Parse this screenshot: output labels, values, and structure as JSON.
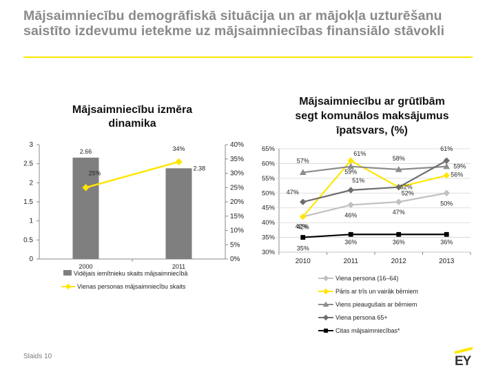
{
  "slide_title": {
    "line1": "Mājsaimniecību demogrāfiskā situācija un ar mājokļa uzturēšanu",
    "line2": "saistīto izdevumu ietekme uz mājsaimniecības finansiālo stāvokli"
  },
  "footer": {
    "slide_label": "Slaids 10",
    "logo": "EY"
  },
  "colors": {
    "accent": "#ffe600",
    "bar": "#7f7f7f",
    "line_yellow": "#ffe600",
    "gray_light": "#c0c0c0",
    "gray_mid": "#8c8c8c",
    "gray_dark": "#6e6e6e",
    "black": "#000000"
  },
  "chart_data": [
    {
      "type": "bar",
      "title": "Mājsaimniecību izmēra dinamika",
      "title_lines": [
        "Mājsaimniecību izmēra",
        "dinamika"
      ],
      "categories": [
        "2000",
        "2011"
      ],
      "series": [
        {
          "name": "Vidējais iemītnieku skaits mājsaimniecībā",
          "type": "bar",
          "axis": "left",
          "values": [
            2.66,
            2.38
          ],
          "labels": [
            "2.66",
            "2.38"
          ],
          "color": "#7f7f7f"
        },
        {
          "name": "Vienas personas mājsaimniecību skaits",
          "type": "line",
          "axis": "right",
          "values": [
            25,
            34
          ],
          "labels": [
            "25%",
            "34%"
          ],
          "color": "#ffe600",
          "marker": "diamond"
        }
      ],
      "ylim": [
        0,
        3
      ],
      "yticks": [
        "0",
        "0.5",
        "1",
        "1.5",
        "2",
        "2.5",
        "3"
      ],
      "y2lim": [
        0,
        40
      ],
      "y2ticks": [
        "0%",
        "5%",
        "10%",
        "15%",
        "20%",
        "25%",
        "30%",
        "35%",
        "40%"
      ],
      "legend": "bottom"
    },
    {
      "type": "line",
      "title": "Mājsaimniecību ar grūtībām segt komunālos maksājumus īpatsvars, (%)",
      "title_lines": [
        "Mājsaimniecību ar grūtībām",
        "segt komunālos maksājumus",
        "īpatsvars, (%)"
      ],
      "x": [
        "2010",
        "2011",
        "2012",
        "2013"
      ],
      "ylim": [
        30,
        65
      ],
      "yticks": [
        "30%",
        "35%",
        "40%",
        "45%",
        "50%",
        "55%",
        "60%",
        "65%"
      ],
      "series": [
        {
          "name": "Viena persona (16–64)",
          "values": [
            42,
            46,
            47,
            50
          ],
          "labels": [
            "42%",
            "46%",
            "47%",
            "50%"
          ],
          "color": "#c0c0c0",
          "marker": "diamond"
        },
        {
          "name": "Pāris ar trīs un vairāk bērniem",
          "values": [
            42,
            61,
            52,
            56
          ],
          "labels": [
            "42%",
            "61%",
            "52%",
            "56%"
          ],
          "color": "#ffe600",
          "marker": "diamond"
        },
        {
          "name": "Viens pieaugušais ar bērniem",
          "values": [
            57,
            59,
            58,
            59
          ],
          "labels": [
            "57%",
            "59%",
            "58%",
            "59%"
          ],
          "color": "#8c8c8c",
          "marker": "triangle"
        },
        {
          "name": "Viena persona 65+",
          "values": [
            47,
            51,
            52,
            61
          ],
          "labels": [
            "47%",
            "51%",
            "52%",
            "61%"
          ],
          "color": "#6e6e6e",
          "marker": "diamond"
        },
        {
          "name": "Citas mājsaimniecības*",
          "values": [
            35,
            36,
            36,
            36
          ],
          "labels": [
            "35%",
            "36%",
            "36%",
            "36%"
          ],
          "color": "#000000",
          "marker": "square"
        }
      ],
      "legend": "bottom"
    }
  ]
}
